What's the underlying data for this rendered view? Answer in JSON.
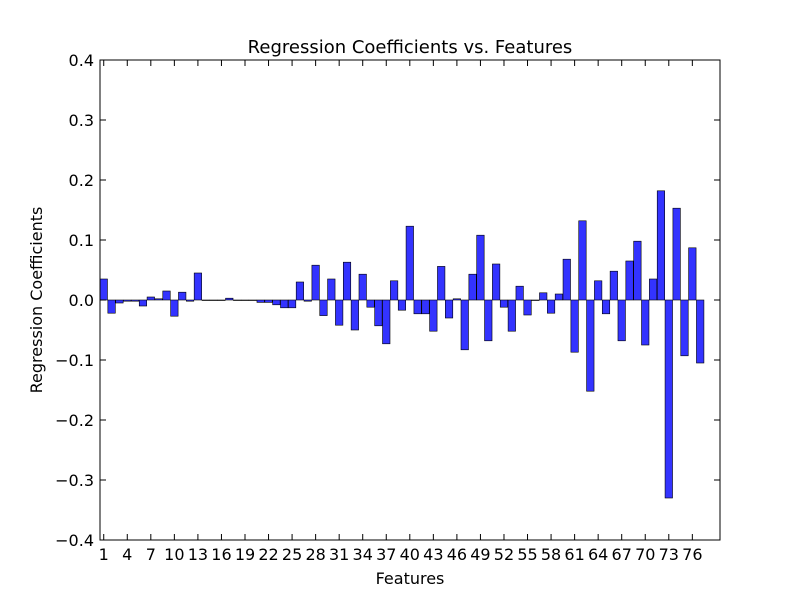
{
  "chart_data": {
    "type": "bar",
    "title": "Regression Coefficients vs. Features",
    "xlabel": "Features",
    "ylabel": "Regression Coefficients",
    "ylim": [
      -0.4,
      0.4
    ],
    "yticks": [
      0.4,
      0.3,
      0.2,
      0.1,
      0.0,
      -0.1,
      -0.2,
      -0.3,
      -0.4
    ],
    "ytick_labels": [
      "0.4",
      "0.3",
      "0.2",
      "0.1",
      "0.0",
      "−0.1",
      "−0.2",
      "−0.3",
      "−0.4"
    ],
    "xticks": [
      "1",
      "4",
      "7",
      "10",
      "13",
      "16",
      "19",
      "22",
      "25",
      "28",
      "31",
      "34",
      "37",
      "40",
      "43",
      "46",
      "49",
      "52",
      "55",
      "58",
      "61",
      "64",
      "67",
      "70",
      "73",
      "76"
    ],
    "x_start": 1,
    "x_step": 3,
    "bar_color": "#3333ff",
    "grid": false,
    "values": [
      0.035,
      -0.022,
      -0.005,
      -0.002,
      -0.002,
      -0.01,
      0.005,
      0.002,
      0.015,
      -0.027,
      0.013,
      -0.002,
      0.045,
      0.0,
      0.0,
      0.0,
      0.003,
      0.0,
      0.0,
      0.0,
      -0.004,
      -0.004,
      -0.008,
      -0.013,
      -0.013,
      0.03,
      -0.002,
      0.058,
      -0.026,
      0.035,
      -0.042,
      0.063,
      -0.05,
      0.043,
      -0.012,
      -0.043,
      -0.073,
      0.032,
      -0.017,
      0.123,
      -0.023,
      -0.023,
      -0.052,
      0.056,
      -0.03,
      0.002,
      -0.083,
      0.043,
      0.108,
      -0.068,
      0.06,
      -0.012,
      -0.052,
      0.023,
      -0.025,
      0.0,
      0.012,
      -0.022,
      0.01,
      0.068,
      -0.087,
      0.132,
      -0.152,
      0.032,
      -0.023,
      0.048,
      -0.068,
      0.065,
      0.098,
      -0.075,
      0.035,
      0.182,
      -0.33,
      0.153,
      -0.093,
      0.087,
      -0.105
    ]
  }
}
